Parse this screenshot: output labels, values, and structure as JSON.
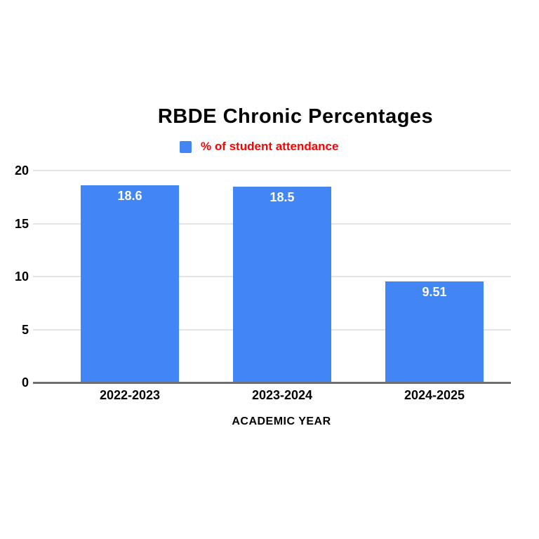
{
  "chart_data": {
    "type": "bar",
    "title": "RBDE Chronic Percentages",
    "legend": {
      "label": "% of student attendance",
      "swatch_color": "#4285F4",
      "text_color": "#FF0000",
      "position": "top"
    },
    "categories": [
      "2022-2023",
      "2023-2024",
      "2024-2025"
    ],
    "series": [
      {
        "name": "% of student attendance",
        "values": [
          18.6,
          18.5,
          9.51
        ],
        "color": "#4285F4"
      }
    ],
    "value_labels": [
      "18.6",
      "18.5",
      "9.51"
    ],
    "xlabel": "ACADEMIC YEAR",
    "ylabel": "",
    "ylim": [
      0,
      20
    ],
    "yticks": [
      0,
      5,
      10,
      15,
      20
    ],
    "grid": true,
    "colors": {
      "background": "#FFFFFF",
      "bar": "#4285F4",
      "gridline": "#E4E4E4",
      "axis_line": "#6E6E6E",
      "tick_text": "#000000",
      "value_label_text": "#FFFFFF",
      "title_text": "#000000"
    }
  }
}
